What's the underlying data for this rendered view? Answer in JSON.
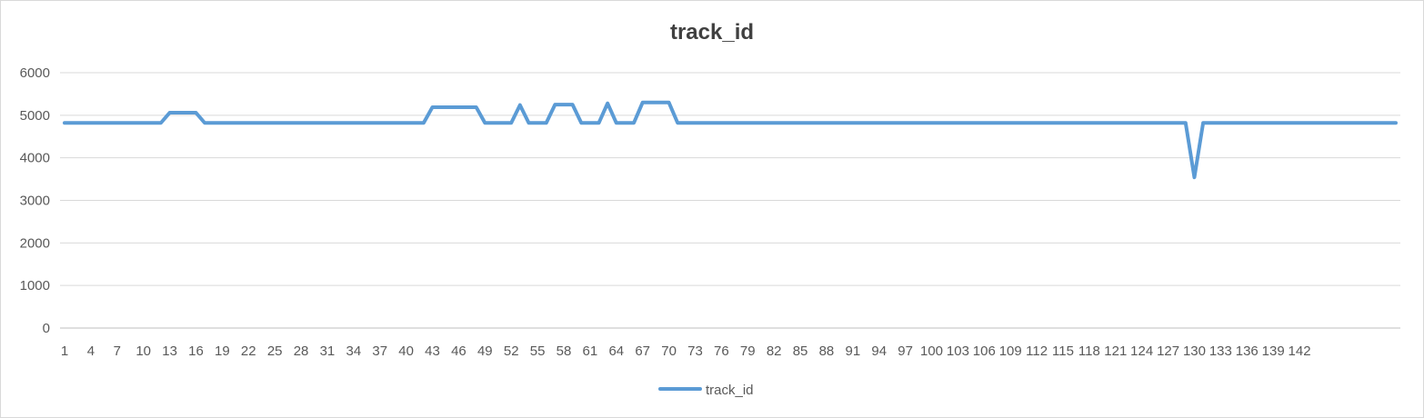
{
  "chart_data": {
    "type": "line",
    "title": "track_id",
    "xlabel": "",
    "ylabel": "",
    "ylim": [
      0,
      6000
    ],
    "yticks": [
      0,
      1000,
      2000,
      3000,
      4000,
      5000,
      6000
    ],
    "x_tick_labels": [
      "1",
      "4",
      "7",
      "10",
      "13",
      "16",
      "19",
      "22",
      "25",
      "28",
      "31",
      "34",
      "37",
      "40",
      "43",
      "46",
      "49",
      "52",
      "55",
      "58",
      "61",
      "64",
      "67",
      "70",
      "73",
      "76",
      "79",
      "82",
      "85",
      "88",
      "91",
      "94",
      "97",
      "100",
      "103",
      "106",
      "109",
      "112",
      "115",
      "118",
      "121",
      "124",
      "127",
      "130",
      "133",
      "136",
      "139",
      "142"
    ],
    "grid": true,
    "legend_position": "bottom",
    "color": "#5b9bd5",
    "series": [
      {
        "name": "track_id",
        "values": [
          4820,
          4820,
          4820,
          4820,
          4820,
          4820,
          4820,
          4820,
          4820,
          4820,
          4820,
          4820,
          5060,
          5060,
          5060,
          5060,
          4820,
          4820,
          4820,
          4820,
          4820,
          4820,
          4820,
          4820,
          4820,
          4820,
          4820,
          4820,
          4820,
          4820,
          4820,
          4820,
          4820,
          4820,
          4820,
          4820,
          4820,
          4820,
          4820,
          4820,
          4820,
          4820,
          5190,
          5190,
          5190,
          5190,
          5190,
          5190,
          4820,
          4820,
          4820,
          4820,
          5240,
          4820,
          4820,
          4820,
          5250,
          5250,
          5250,
          4820,
          4820,
          4820,
          5280,
          4820,
          4820,
          4820,
          5300,
          5300,
          5300,
          5300,
          4820,
          4820,
          4820,
          4820,
          4820,
          4820,
          4820,
          4820,
          4820,
          4820,
          4820,
          4820,
          4820,
          4820,
          4820,
          4820,
          4820,
          4820,
          4820,
          4820,
          4820,
          4820,
          4820,
          4820,
          4820,
          4820,
          4820,
          4820,
          4820,
          4820,
          4820,
          4820,
          4820,
          4820,
          4820,
          4820,
          4820,
          4820,
          4820,
          4820,
          4820,
          4820,
          4820,
          4820,
          4820,
          4820,
          4820,
          4820,
          4820,
          4820,
          4820,
          4820,
          4820,
          4820,
          4820,
          4820,
          4820,
          4820,
          4820,
          3540,
          4820,
          4820,
          4820,
          4820,
          4820,
          4820,
          4820,
          4820,
          4820,
          4820,
          4820,
          4820,
          4820,
          4820,
          4820,
          4820,
          4820,
          4820,
          4820,
          4820,
          4820,
          4820,
          4820
        ]
      }
    ]
  }
}
